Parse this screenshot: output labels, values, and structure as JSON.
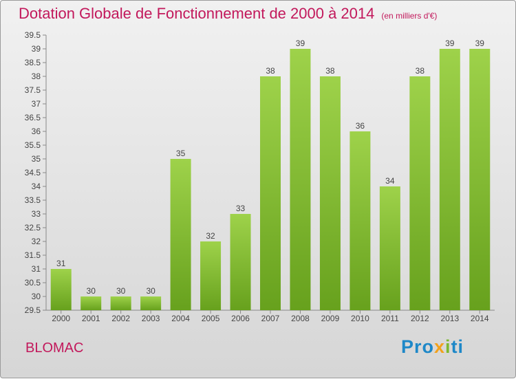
{
  "header": {
    "title": "Dotation Globale de Fonctionnement de 2000 à 2014",
    "unit": "(en milliers d'€)"
  },
  "commune": "BLOMAC",
  "logo": {
    "part1": "Pro",
    "part2": "x",
    "part3": "i",
    "part4": "ti"
  },
  "colors": {
    "bar_light": "#9ed24a",
    "bar_dark": "#67a11d",
    "title": "#c2185b",
    "axis": "#888888"
  },
  "chart_data": {
    "type": "bar",
    "categories": [
      "2000",
      "2001",
      "2002",
      "2003",
      "2004",
      "2005",
      "2006",
      "2007",
      "2008",
      "2009",
      "2010",
      "2011",
      "2012",
      "2013",
      "2014"
    ],
    "values": [
      31,
      30,
      30,
      30,
      35,
      32,
      33,
      38,
      39,
      38,
      36,
      34,
      38,
      39,
      39
    ],
    "ylim": [
      29.5,
      39.5
    ],
    "yticks": [
      "29.5",
      "30",
      "30.5",
      "31",
      "31.5",
      "32",
      "32.5",
      "33",
      "33.5",
      "34",
      "34.5",
      "35",
      "35.5",
      "36",
      "36.5",
      "37",
      "37.5",
      "38",
      "38.5",
      "39",
      "39.5"
    ],
    "title": "Dotation Globale de Fonctionnement de 2000 à 2014",
    "xlabel": "",
    "ylabel": "",
    "grid": false
  }
}
